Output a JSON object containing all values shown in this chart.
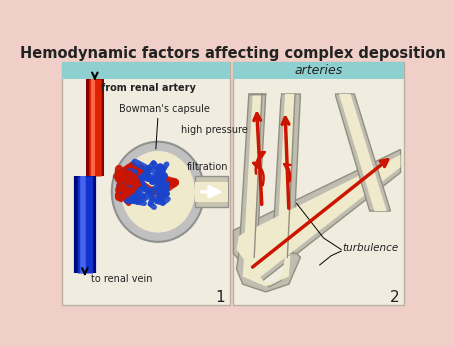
{
  "title": "Hemodynamic factors affecting complex deposition",
  "title_fontsize": 10.5,
  "bg_outer": "#f0cfc8",
  "bg_header": "#8ecfcf",
  "bg_panel": "#f0ede0",
  "border_color": "#b8b0a0",
  "panel1_label": "1",
  "panel2_label": "2",
  "label_from": "from renal artery",
  "label_bowman": "Bowman's capsule",
  "label_pressure": "high pressure",
  "label_filtration": "filtration",
  "label_vein": "to renal vein",
  "label_arteries": "arteries",
  "label_turbulence": "turbulence",
  "red_color": "#cc1500",
  "blue_color": "#1a44cc",
  "gray_wall": "#b8b8b8",
  "gray_dark": "#888888",
  "cream": "#f0eacc",
  "text_color": "#222222",
  "capsule_gray": "#b0b0b0"
}
